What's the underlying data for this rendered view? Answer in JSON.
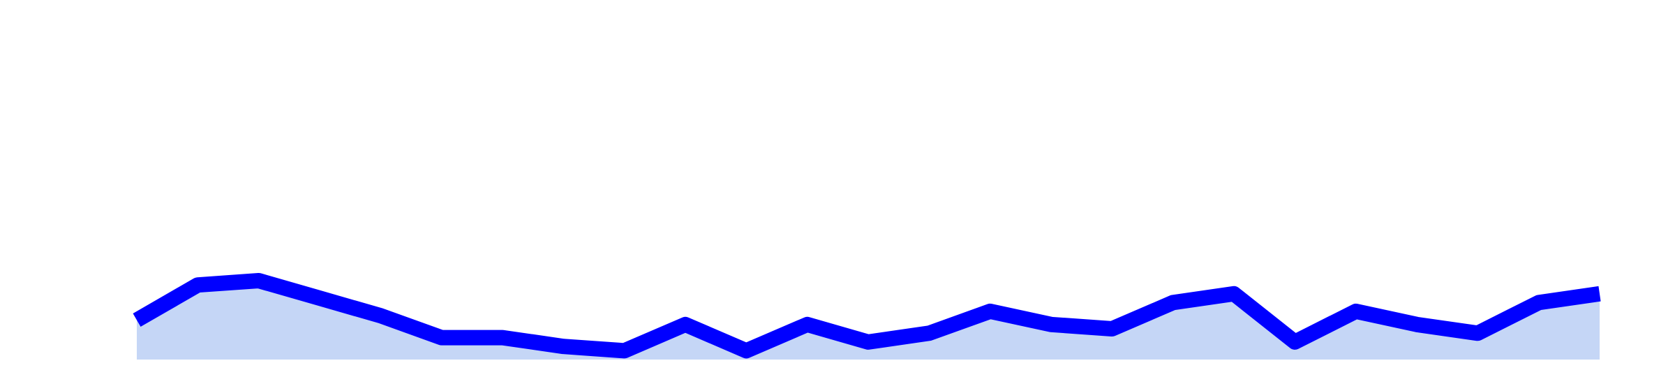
{
  "chart_data": {
    "type": "area",
    "title": "",
    "xlabel": "",
    "ylabel": "",
    "x": [
      1,
      2,
      3,
      4,
      5,
      6,
      7,
      8,
      9,
      10,
      11,
      12,
      13,
      14,
      15,
      16,
      17,
      18,
      19,
      20,
      21,
      22,
      23,
      24,
      25
    ],
    "series": [
      {
        "name": "",
        "values": [
          0.35,
          0.75,
          0.8,
          0.6,
          0.4,
          0.15,
          0.15,
          0.05,
          0.0,
          0.3,
          0.0,
          0.3,
          0.1,
          0.2,
          0.45,
          0.3,
          0.25,
          0.55,
          0.65,
          0.1,
          0.45,
          0.3,
          0.2,
          0.55,
          0.65
        ]
      }
    ],
    "ylim": [
      -0.1,
      4.0
    ],
    "grid": false,
    "legend": "none",
    "colors": {
      "line": "#0000ff",
      "fill": "#c5d6f6",
      "background": "#ffffff"
    }
  }
}
